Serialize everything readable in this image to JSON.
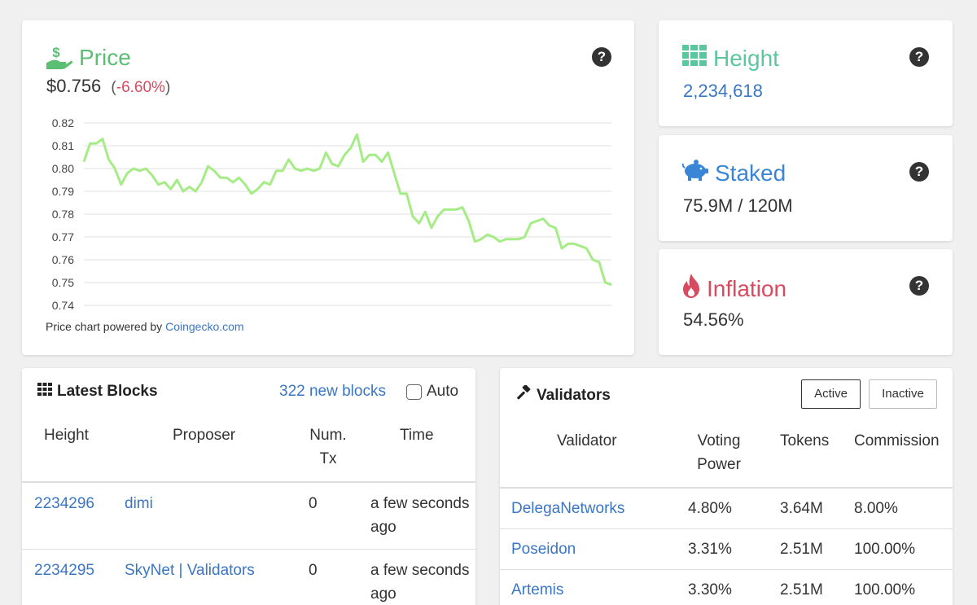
{
  "price": {
    "title": "Price",
    "value": "$0.756",
    "change_open": "(",
    "change": "-6.60%",
    "change_close": ")",
    "footer_text": "Price chart powered by ",
    "footer_link": "Coingecko.com",
    "colors": {
      "title": "#5bbf73",
      "change": "#d84a5f",
      "line": "#a6ec86"
    }
  },
  "chart_data": {
    "type": "line",
    "title": "",
    "xlabel": "",
    "ylabel": "",
    "ylim": [
      0.74,
      0.82
    ],
    "yticks": [
      "0.82",
      "0.81",
      "0.80",
      "0.79",
      "0.78",
      "0.77",
      "0.76",
      "0.75",
      "0.74"
    ],
    "grid": true,
    "series": [
      {
        "values": [
          0.803,
          0.811,
          0.811,
          0.813,
          0.804,
          0.8,
          0.793,
          0.798,
          0.8,
          0.799,
          0.8,
          0.797,
          0.793,
          0.794,
          0.791,
          0.795,
          0.79,
          0.792,
          0.79,
          0.794,
          0.801,
          0.799,
          0.796,
          0.796,
          0.794,
          0.796,
          0.793,
          0.789,
          0.791,
          0.794,
          0.793,
          0.799,
          0.799,
          0.804,
          0.8,
          0.799,
          0.8,
          0.799,
          0.8,
          0.807,
          0.802,
          0.801,
          0.806,
          0.809,
          0.815,
          0.803,
          0.806,
          0.806,
          0.803,
          0.807,
          0.798,
          0.789,
          0.789,
          0.779,
          0.776,
          0.781,
          0.774,
          0.779,
          0.782,
          0.782,
          0.782,
          0.783,
          0.777,
          0.768,
          0.769,
          0.771,
          0.77,
          0.768,
          0.769,
          0.769,
          0.769,
          0.77,
          0.776,
          0.777,
          0.778,
          0.775,
          0.774,
          0.765,
          0.767,
          0.767,
          0.766,
          0.765,
          0.76,
          0.759,
          0.75,
          0.749
        ]
      }
    ]
  },
  "height": {
    "title": "Height",
    "value": "2,234,618",
    "color": "#5bc79e"
  },
  "staked": {
    "title": "Staked",
    "value": "75.9M / 120M",
    "color": "#3a86d6"
  },
  "inflation": {
    "title": "Inflation",
    "value": "54.56%",
    "color": "#d84a5f"
  },
  "help_glyph": "?",
  "blocks": {
    "title": "Latest Blocks",
    "new_blocks": "322 new blocks",
    "auto_label": "Auto",
    "auto_checked": false,
    "columns": [
      "Height",
      "Proposer",
      "Num. Tx",
      "Time"
    ],
    "rows": [
      {
        "height": "2234296",
        "proposer": "dimi",
        "num_tx": "0",
        "time": "a few seconds ago"
      },
      {
        "height": "2234295",
        "proposer": "SkyNet | Validators",
        "num_tx": "0",
        "time": "a few seconds ago"
      }
    ]
  },
  "validators": {
    "title": "Validators",
    "tabs": [
      {
        "label": "Active",
        "selected": true
      },
      {
        "label": "Inactive",
        "selected": false
      }
    ],
    "columns": [
      "Validator",
      "Voting Power",
      "Tokens",
      "Commission"
    ],
    "rows": [
      {
        "name": "DelegaNetworks",
        "voting_power": "4.80%",
        "tokens": "3.64M",
        "commission": "8.00%"
      },
      {
        "name": "Poseidon",
        "voting_power": "3.31%",
        "tokens": "2.51M",
        "commission": "100.00%"
      },
      {
        "name": "Artemis",
        "voting_power": "3.30%",
        "tokens": "2.51M",
        "commission": "100.00%"
      }
    ]
  }
}
